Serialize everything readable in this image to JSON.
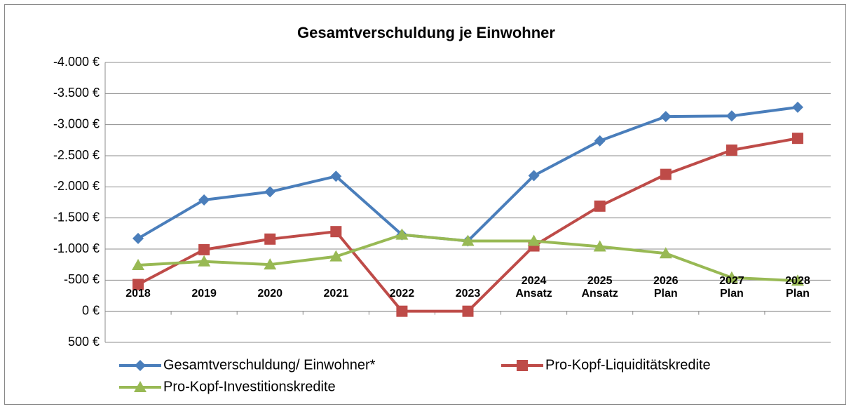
{
  "chart_data": {
    "type": "line",
    "title": "Gesamtverschuldung je Einwohner",
    "categories": [
      "2018",
      "2019",
      "2020",
      "2021",
      "2022",
      "2023",
      "2024\nAnsatz",
      "2025\nAnsatz",
      "2026\nPlan",
      "2027\nPlan",
      "2028\nPlan"
    ],
    "series": [
      {
        "name": "Gesamtverschuldung/ Einwohner*",
        "color": "#4a7ebb",
        "marker": "diamond",
        "values": [
          -1170,
          -1790,
          -1920,
          -2170,
          -1230,
          -1130,
          -2180,
          -2740,
          -3130,
          -3140,
          -3280
        ]
      },
      {
        "name": "Pro-Kopf-Liquiditätskredite",
        "color": "#be4b48",
        "marker": "square",
        "values": [
          -430,
          -990,
          -1160,
          -1280,
          0,
          0,
          -1050,
          -1690,
          -2200,
          -2590,
          -2780
        ]
      },
      {
        "name": "Pro-Kopf-Investitionskredite",
        "color": "#98b954",
        "marker": "triangle",
        "values": [
          -740,
          -800,
          -750,
          -880,
          -1230,
          -1130,
          -1130,
          -1040,
          -930,
          -540,
          -490
        ]
      }
    ],
    "ylim": [
      500,
      -4000
    ],
    "yticks": [
      {
        "value": -4000,
        "label": "-4.000 €"
      },
      {
        "value": -3500,
        "label": "-3.500 €"
      },
      {
        "value": -3000,
        "label": "-3.000 €"
      },
      {
        "value": -2500,
        "label": "-2.500 €"
      },
      {
        "value": -2000,
        "label": "-2.000 €"
      },
      {
        "value": -1500,
        "label": "-1.500 €"
      },
      {
        "value": -1000,
        "label": "-1.000 €"
      },
      {
        "value": -500,
        "label": "-500 €"
      },
      {
        "value": 0,
        "label": "0 €"
      },
      {
        "value": 500,
        "label": "500 €"
      }
    ],
    "grid": true,
    "legend": "bottom"
  }
}
